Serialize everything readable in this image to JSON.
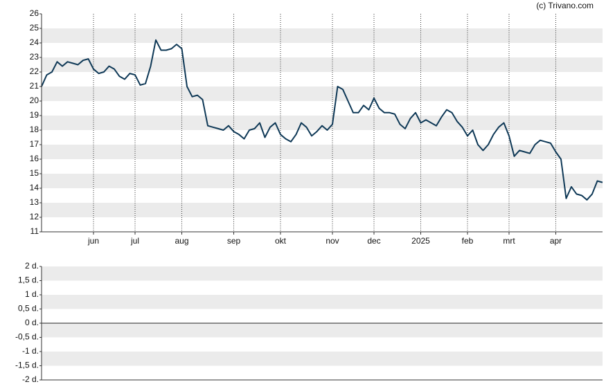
{
  "chart_data": [
    {
      "type": "line",
      "annotation": "(c) Trivano.com",
      "categories": [
        null,
        null,
        null,
        null,
        null,
        null,
        null,
        null,
        null,
        null,
        "jun",
        null,
        null,
        null,
        null,
        null,
        null,
        null,
        "jul",
        null,
        null,
        null,
        null,
        null,
        null,
        null,
        null,
        "aug",
        null,
        null,
        null,
        null,
        null,
        null,
        null,
        null,
        null,
        "sep",
        null,
        null,
        null,
        null,
        null,
        null,
        null,
        null,
        "okt",
        null,
        null,
        null,
        null,
        null,
        null,
        null,
        null,
        null,
        "nov",
        null,
        null,
        null,
        null,
        null,
        null,
        null,
        "dec",
        null,
        null,
        null,
        null,
        null,
        null,
        null,
        null,
        "2025",
        null,
        null,
        null,
        null,
        null,
        null,
        null,
        null,
        "feb",
        null,
        null,
        null,
        null,
        null,
        null,
        null,
        "mrt",
        null,
        null,
        null,
        null,
        null,
        null,
        null,
        null,
        "apr",
        null,
        null,
        null,
        null,
        null,
        null,
        null,
        null,
        null
      ],
      "values": [
        21.0,
        21.8,
        22.0,
        22.7,
        22.4,
        22.7,
        22.6,
        22.5,
        22.8,
        22.9,
        22.2,
        21.9,
        22.0,
        22.4,
        22.2,
        21.7,
        21.5,
        21.9,
        21.8,
        21.1,
        21.2,
        22.4,
        24.2,
        23.5,
        23.5,
        23.6,
        23.9,
        23.6,
        21.0,
        20.3,
        20.4,
        20.1,
        18.3,
        18.2,
        18.1,
        18.0,
        18.3,
        17.9,
        17.7,
        17.4,
        18.0,
        18.1,
        18.5,
        17.5,
        18.2,
        18.5,
        17.7,
        17.4,
        17.2,
        17.7,
        18.5,
        18.2,
        17.6,
        17.9,
        18.3,
        18.0,
        18.4,
        21.0,
        20.8,
        20.0,
        19.2,
        19.2,
        19.7,
        19.4,
        20.2,
        19.5,
        19.2,
        19.2,
        19.1,
        18.4,
        18.1,
        18.8,
        19.2,
        18.5,
        18.7,
        18.5,
        18.3,
        18.9,
        19.4,
        19.2,
        18.6,
        18.2,
        17.6,
        18.0,
        17.0,
        16.6,
        17.0,
        17.7,
        18.2,
        18.5,
        17.6,
        16.2,
        16.6,
        16.5,
        16.4,
        17.0,
        17.3,
        17.2,
        17.1,
        16.5,
        16.0,
        13.3,
        14.1,
        13.6,
        13.5,
        13.2,
        13.6,
        14.5,
        14.4
      ],
      "color": "#0e3856",
      "ylim": [
        11,
        26
      ],
      "yticks": [
        11,
        12,
        13,
        14,
        15,
        16,
        17,
        18,
        19,
        20,
        21,
        22,
        23,
        24,
        25,
        26
      ],
      "grid": "bands"
    },
    {
      "type": "line",
      "series": [],
      "ylim": [
        -2,
        2
      ],
      "yticks": [
        {
          "value": -2,
          "label": "-2 d."
        },
        {
          "value": -1.5,
          "label": "-1,5 d."
        },
        {
          "value": -1,
          "label": "-1 d."
        },
        {
          "value": -0.5,
          "label": "-0,5 d."
        },
        {
          "value": 0,
          "label": "0 d."
        },
        {
          "value": 0.5,
          "label": "0,5 d."
        },
        {
          "value": 1,
          "label": "1 d."
        },
        {
          "value": 1.5,
          "label": "1,5 d."
        },
        {
          "value": 2,
          "label": "2 d."
        }
      ],
      "grid": "bands"
    }
  ]
}
